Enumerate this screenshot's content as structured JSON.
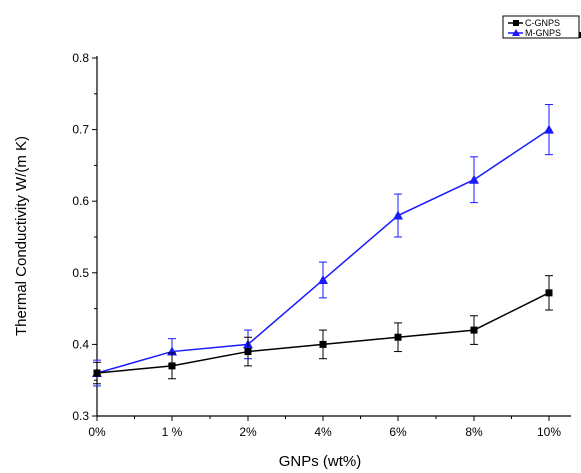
{
  "chart_data": {
    "type": "line",
    "categories": [
      "0%",
      "1 %",
      "2%",
      "4%",
      "6%",
      "8%",
      "10%"
    ],
    "series": [
      {
        "name": "C-GNPS",
        "color": "#000000",
        "marker": "square",
        "values": [
          0.36,
          0.37,
          0.39,
          0.4,
          0.41,
          0.42,
          0.472
        ],
        "errors": [
          0.015,
          0.018,
          0.02,
          0.02,
          0.02,
          0.02,
          0.024
        ]
      },
      {
        "name": "M-GNPS",
        "color": "#1a1aff",
        "marker": "triangle",
        "values": [
          0.36,
          0.39,
          0.4,
          0.49,
          0.58,
          0.63,
          0.7
        ],
        "errors": [
          0.018,
          0.018,
          0.02,
          0.025,
          0.03,
          0.032,
          0.035
        ]
      }
    ],
    "xlabel": "GNPs (wt%)",
    "ylabel": "Thermal Conductivity W/(m K)",
    "ylim": [
      0.3,
      0.8
    ],
    "yticks": [
      "0.3",
      "0.4",
      "0.5",
      "0.6",
      "0.7",
      "0.8"
    ],
    "grid": false,
    "legend_position": "top-right"
  }
}
